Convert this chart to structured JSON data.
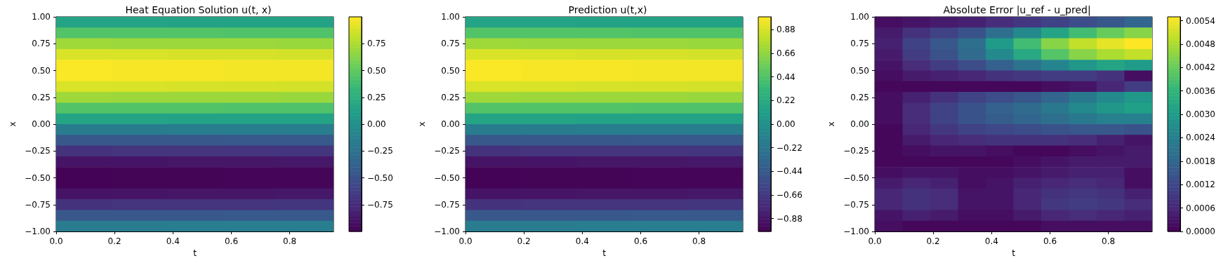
{
  "chart_data": [
    {
      "type": "heatmap",
      "title": "Heat Equation Solution u(t, x)",
      "xlabel": "t",
      "ylabel": "x",
      "xlim": [
        0,
        0.95
      ],
      "ylim": [
        -1,
        1
      ],
      "xticks": [
        {
          "value": 0,
          "label": "0.0"
        },
        {
          "value": 0.2,
          "label": "0.2"
        },
        {
          "value": 0.4,
          "label": "0.4"
        },
        {
          "value": 0.6,
          "label": "0.6"
        },
        {
          "value": 0.8,
          "label": "0.8"
        }
      ],
      "yticks": [
        {
          "value": -1,
          "label": "−1.00"
        },
        {
          "value": -0.75,
          "label": "−0.75"
        },
        {
          "value": -0.5,
          "label": "−0.50"
        },
        {
          "value": -0.25,
          "label": "−0.25"
        },
        {
          "value": 0,
          "label": "0.00"
        },
        {
          "value": 0.25,
          "label": "0.25"
        },
        {
          "value": 0.5,
          "label": "0.50"
        },
        {
          "value": 0.75,
          "label": "0.75"
        },
        {
          "value": 1,
          "label": "1.00"
        }
      ],
      "clim": [
        -1,
        1
      ],
      "cticks": [
        {
          "value": -0.75,
          "label": "−0.75"
        },
        {
          "value": -0.5,
          "label": "−0.50"
        },
        {
          "value": -0.25,
          "label": "−0.25"
        },
        {
          "value": 0,
          "label": "0.00"
        },
        {
          "value": 0.25,
          "label": "0.25"
        },
        {
          "value": 0.5,
          "label": "0.50"
        },
        {
          "value": 0.75,
          "label": "0.75"
        }
      ],
      "cells": [
        [
          0.16,
          0.16,
          0.15,
          0.15,
          0.15
        ],
        [
          0.45,
          0.45,
          0.45,
          0.44,
          0.44
        ],
        [
          0.71,
          0.7,
          0.7,
          0.7,
          0.69
        ],
        [
          0.89,
          0.89,
          0.88,
          0.88,
          0.87
        ],
        [
          0.99,
          0.98,
          0.98,
          0.97,
          0.97
        ],
        [
          0.99,
          0.98,
          0.98,
          0.97,
          0.97
        ],
        [
          0.89,
          0.89,
          0.88,
          0.88,
          0.87
        ],
        [
          0.71,
          0.7,
          0.7,
          0.7,
          0.69
        ],
        [
          0.45,
          0.45,
          0.45,
          0.44,
          0.44
        ],
        [
          0.16,
          0.16,
          0.15,
          0.15,
          0.15
        ],
        [
          -0.16,
          -0.16,
          -0.15,
          -0.15,
          -0.15
        ],
        [
          -0.45,
          -0.45,
          -0.45,
          -0.44,
          -0.44
        ],
        [
          -0.71,
          -0.7,
          -0.7,
          -0.7,
          -0.69
        ],
        [
          -0.89,
          -0.89,
          -0.88,
          -0.88,
          -0.87
        ],
        [
          -0.99,
          -0.98,
          -0.98,
          -0.97,
          -0.97
        ],
        [
          -0.99,
          -0.98,
          -0.98,
          -0.97,
          -0.97
        ],
        [
          -0.89,
          -0.89,
          -0.88,
          -0.88,
          -0.87
        ],
        [
          -0.71,
          -0.7,
          -0.7,
          -0.7,
          -0.69
        ],
        [
          -0.45,
          -0.45,
          -0.45,
          -0.44,
          -0.44
        ],
        [
          -0.16,
          -0.16,
          -0.15,
          -0.15,
          -0.15
        ]
      ]
    },
    {
      "type": "heatmap",
      "title": "Prediction u(t,x)",
      "xlabel": "t",
      "ylabel": "x",
      "xlim": [
        0,
        0.95
      ],
      "ylim": [
        -1,
        1
      ],
      "xticks": [
        {
          "value": 0,
          "label": "0.0"
        },
        {
          "value": 0.2,
          "label": "0.2"
        },
        {
          "value": 0.4,
          "label": "0.4"
        },
        {
          "value": 0.6,
          "label": "0.6"
        },
        {
          "value": 0.8,
          "label": "0.8"
        }
      ],
      "yticks": [
        {
          "value": -1,
          "label": "−1.00"
        },
        {
          "value": -0.75,
          "label": "−0.75"
        },
        {
          "value": -0.5,
          "label": "−0.50"
        },
        {
          "value": -0.25,
          "label": "−0.25"
        },
        {
          "value": 0,
          "label": "0.00"
        },
        {
          "value": 0.25,
          "label": "0.25"
        },
        {
          "value": 0.5,
          "label": "0.50"
        },
        {
          "value": 0.75,
          "label": "0.75"
        },
        {
          "value": 1,
          "label": "1.00"
        }
      ],
      "clim": [
        -1,
        1
      ],
      "cticks": [
        {
          "value": -0.88,
          "label": "−0.88"
        },
        {
          "value": -0.66,
          "label": "−0.66"
        },
        {
          "value": -0.44,
          "label": "−0.44"
        },
        {
          "value": -0.22,
          "label": "−0.22"
        },
        {
          "value": 0,
          "label": "0.00"
        },
        {
          "value": 0.22,
          "label": "0.22"
        },
        {
          "value": 0.44,
          "label": "0.44"
        },
        {
          "value": 0.66,
          "label": "0.66"
        },
        {
          "value": 0.88,
          "label": "0.88"
        }
      ],
      "cells": [
        [
          0.16,
          0.16,
          0.15,
          0.15,
          0.15
        ],
        [
          0.45,
          0.45,
          0.45,
          0.44,
          0.44
        ],
        [
          0.71,
          0.7,
          0.7,
          0.7,
          0.69
        ],
        [
          0.89,
          0.89,
          0.88,
          0.88,
          0.87
        ],
        [
          0.99,
          0.98,
          0.98,
          0.97,
          0.97
        ],
        [
          0.99,
          0.98,
          0.98,
          0.97,
          0.97
        ],
        [
          0.89,
          0.89,
          0.88,
          0.88,
          0.87
        ],
        [
          0.71,
          0.7,
          0.7,
          0.7,
          0.69
        ],
        [
          0.45,
          0.45,
          0.45,
          0.44,
          0.44
        ],
        [
          0.16,
          0.16,
          0.15,
          0.15,
          0.15
        ],
        [
          -0.16,
          -0.16,
          -0.15,
          -0.15,
          -0.15
        ],
        [
          -0.45,
          -0.45,
          -0.45,
          -0.44,
          -0.44
        ],
        [
          -0.71,
          -0.7,
          -0.7,
          -0.7,
          -0.69
        ],
        [
          -0.89,
          -0.89,
          -0.88,
          -0.88,
          -0.87
        ],
        [
          -0.99,
          -0.98,
          -0.98,
          -0.97,
          -0.97
        ],
        [
          -0.99,
          -0.98,
          -0.98,
          -0.97,
          -0.97
        ],
        [
          -0.89,
          -0.89,
          -0.88,
          -0.88,
          -0.87
        ],
        [
          -0.71,
          -0.7,
          -0.7,
          -0.7,
          -0.69
        ],
        [
          -0.45,
          -0.45,
          -0.45,
          -0.44,
          -0.44
        ],
        [
          -0.16,
          -0.16,
          -0.15,
          -0.15,
          -0.15
        ]
      ]
    },
    {
      "type": "heatmap",
      "title": "Absolute Error |u_ref - u_pred|",
      "xlabel": "t",
      "ylabel": "x",
      "xlim": [
        0,
        0.95
      ],
      "ylim": [
        -1,
        1
      ],
      "xticks": [
        {
          "value": 0,
          "label": "0.0"
        },
        {
          "value": 0.2,
          "label": "0.2"
        },
        {
          "value": 0.4,
          "label": "0.4"
        },
        {
          "value": 0.6,
          "label": "0.6"
        },
        {
          "value": 0.8,
          "label": "0.8"
        }
      ],
      "yticks": [
        {
          "value": -1,
          "label": "−1.00"
        },
        {
          "value": -0.75,
          "label": "−0.75"
        },
        {
          "value": -0.5,
          "label": "−0.50"
        },
        {
          "value": -0.25,
          "label": "−0.25"
        },
        {
          "value": 0,
          "label": "0.00"
        },
        {
          "value": 0.25,
          "label": "0.25"
        },
        {
          "value": 0.5,
          "label": "0.50"
        },
        {
          "value": 0.75,
          "label": "0.75"
        },
        {
          "value": 1,
          "label": "1.00"
        }
      ],
      "clim": [
        0,
        0.0055
      ],
      "cticks": [
        {
          "value": 0,
          "label": "0.0000"
        },
        {
          "value": 0.0006,
          "label": "0.0006"
        },
        {
          "value": 0.0012,
          "label": "0.0012"
        },
        {
          "value": 0.0018,
          "label": "0.0018"
        },
        {
          "value": 0.0024,
          "label": "0.0024"
        },
        {
          "value": 0.003,
          "label": "0.0030"
        },
        {
          "value": 0.0036,
          "label": "0.0036"
        },
        {
          "value": 0.0042,
          "label": "0.0042"
        },
        {
          "value": 0.0048,
          "label": "0.0048"
        },
        {
          "value": 0.0054,
          "label": "0.0054"
        }
      ],
      "cells": [
        [
          0.0002,
          0.0003,
          0.0004,
          0.0005,
          0.0007,
          0.0009,
          0.0011,
          0.0013,
          0.0015,
          0.0018
        ],
        [
          0.0004,
          0.0008,
          0.0011,
          0.0014,
          0.002,
          0.0026,
          0.0032,
          0.0038,
          0.0042,
          0.0045
        ],
        [
          0.0005,
          0.0011,
          0.0015,
          0.002,
          0.003,
          0.0038,
          0.0045,
          0.005,
          0.0053,
          0.0055
        ],
        [
          0.0004,
          0.001,
          0.0014,
          0.0019,
          0.0026,
          0.0033,
          0.004,
          0.0045,
          0.0048,
          0.005
        ],
        [
          0.0003,
          0.0007,
          0.001,
          0.0013,
          0.0017,
          0.0021,
          0.0025,
          0.0029,
          0.0032,
          0.003
        ],
        [
          0.0002,
          0.0004,
          0.0005,
          0.0006,
          0.0008,
          0.0009,
          0.001,
          0.001,
          0.0008,
          0.0002
        ],
        [
          0.0001,
          0.0001,
          0.0001,
          0.0001,
          0.0001,
          0.0001,
          0.0002,
          0.0003,
          0.0006,
          0.001
        ],
        [
          0.0002,
          0.0005,
          0.0008,
          0.0011,
          0.0013,
          0.0015,
          0.0018,
          0.0022,
          0.0026,
          0.0029
        ],
        [
          0.0002,
          0.0007,
          0.0011,
          0.0014,
          0.0017,
          0.0019,
          0.0022,
          0.0026,
          0.0029,
          0.0031
        ],
        [
          0.0002,
          0.0007,
          0.0011,
          0.0014,
          0.0016,
          0.0018,
          0.002,
          0.0022,
          0.0024,
          0.0024
        ],
        [
          0.0001,
          0.0006,
          0.0009,
          0.0011,
          0.0012,
          0.0013,
          0.0014,
          0.0015,
          0.0015,
          0.0014
        ],
        [
          0.0001,
          0.0004,
          0.0006,
          0.0007,
          0.0008,
          0.0008,
          0.0008,
          0.0007,
          0.0005,
          0.0003
        ],
        [
          0.0001,
          0.0002,
          0.0003,
          0.0003,
          0.0002,
          0.0001,
          0.0001,
          0.0002,
          0.0003,
          0.0004
        ],
        [
          0.0001,
          0.0001,
          0.0001,
          0.0001,
          0.0001,
          0.0002,
          0.0003,
          0.0004,
          0.0004,
          0.0004
        ],
        [
          0.0002,
          0.0003,
          0.0003,
          0.0002,
          0.0002,
          0.0003,
          0.0004,
          0.0005,
          0.0005,
          0.0002
        ],
        [
          0.0004,
          0.0006,
          0.0005,
          0.0002,
          0.0003,
          0.0005,
          0.0006,
          0.0007,
          0.0006,
          0.0002
        ],
        [
          0.0006,
          0.0008,
          0.0007,
          0.0003,
          0.0003,
          0.0006,
          0.0008,
          0.0009,
          0.0008,
          0.0005
        ],
        [
          0.0006,
          0.0008,
          0.0007,
          0.0003,
          0.0003,
          0.0006,
          0.0009,
          0.001,
          0.0009,
          0.0007
        ],
        [
          0.0003,
          0.0005,
          0.0004,
          0.0002,
          0.0002,
          0.0004,
          0.0006,
          0.0007,
          0.0006,
          0.0005
        ],
        [
          0.0002,
          0.0001,
          0.0001,
          0.0001,
          0.0001,
          0.0001,
          0.0002,
          0.0002,
          0.0002,
          0.0002
        ]
      ]
    }
  ]
}
